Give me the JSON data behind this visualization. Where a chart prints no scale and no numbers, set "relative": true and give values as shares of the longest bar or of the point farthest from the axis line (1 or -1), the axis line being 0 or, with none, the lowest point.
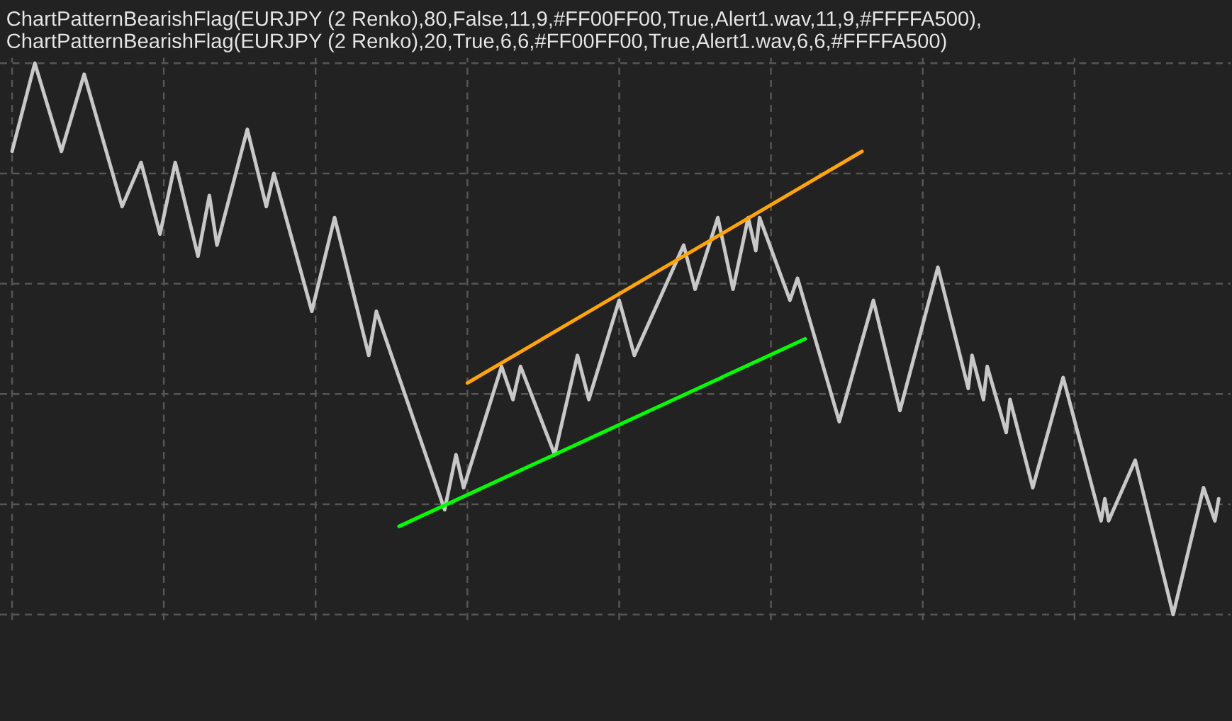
{
  "chart_data": {
    "type": "line",
    "relative": true,
    "title": "ChartPatternBearishFlag(EURJPY (2 Renko),80,False,11,9,#FF00FF00,True,Alert1.wav,11,9,#FFFFA500), ChartPatternBearishFlag(EURJPY (2 Renko),20,True,6,6,#FF00FF00,True,Alert1.wav,6,6,#FFFFA500)",
    "grid": true,
    "categories": [
      null,
      null,
      null,
      null,
      null,
      null,
      null,
      null,
      null,
      null,
      null,
      null,
      null,
      null,
      null,
      null,
      null,
      null,
      null,
      null,
      null,
      null,
      null,
      null,
      null,
      null,
      null,
      null,
      null,
      null,
      null,
      null,
      null,
      null,
      null,
      null,
      null,
      null,
      null,
      null,
      null,
      null,
      null,
      null,
      null,
      null,
      null,
      null,
      null,
      null,
      null,
      null,
      null,
      null,
      null,
      null,
      null,
      null,
      null,
      null,
      null,
      null,
      null,
      null,
      null,
      null,
      null,
      null,
      null,
      null,
      null,
      null,
      null,
      null,
      null,
      null,
      null,
      null,
      null,
      null,
      null,
      null,
      null,
      null,
      null,
      null,
      null,
      null,
      null,
      null,
      null,
      null,
      null,
      null,
      null,
      null,
      null,
      null,
      null,
      null,
      null,
      null,
      null,
      null,
      null,
      null,
      null,
      null,
      null,
      null,
      null,
      null,
      null,
      null,
      null,
      null,
      null,
      null,
      null,
      null,
      null,
      null,
      null,
      null,
      null,
      null,
      null,
      null,
      null,
      null,
      null,
      null,
      null,
      null,
      null,
      null,
      null,
      null,
      null,
      null,
      null,
      null,
      null,
      null,
      null,
      null,
      null,
      null,
      null,
      null,
      null,
      null,
      null,
      null,
      null,
      null,
      null,
      null,
      null,
      null,
      null,
      null,
      null,
      null,
      null,
      null,
      null,
      null,
      null,
      null,
      null,
      null,
      null,
      null,
      null,
      null,
      null,
      null,
      null,
      null,
      null,
      null,
      null,
      null,
      null,
      null,
      null,
      null,
      null,
      null,
      null,
      null,
      null,
      null,
      null,
      null,
      null,
      null,
      null,
      null,
      null,
      null,
      null,
      null,
      null,
      null,
      null,
      null,
      null,
      null,
      null,
      null,
      null,
      null,
      null,
      null,
      null,
      null,
      null,
      null,
      null,
      null,
      null,
      null,
      null,
      null,
      null,
      null,
      null,
      null,
      null,
      null,
      null,
      null,
      null,
      null,
      null,
      null,
      null,
      null,
      null,
      null,
      null,
      null,
      null,
      null,
      null,
      null,
      null,
      null,
      null,
      null,
      null,
      null,
      null,
      null,
      null,
      null,
      null,
      null,
      null,
      null,
      null,
      null,
      null,
      null,
      null,
      null,
      null,
      null,
      null,
      null,
      null,
      null,
      null,
      null,
      null,
      null,
      null,
      null,
      null,
      null,
      null,
      null,
      null,
      null,
      null,
      null,
      null,
      null,
      null,
      null,
      null,
      null,
      null,
      null,
      null,
      null,
      null,
      null,
      null,
      null,
      null,
      null,
      null,
      null,
      null,
      null,
      null,
      null,
      null,
      null,
      null,
      null,
      null,
      null,
      null,
      null,
      null
    ],
    "series": [
      {
        "color": "#c8c8c8",
        "values": [
          0.84,
          null,
          null,
          null,
          null,
          null,
          1.0,
          null,
          null,
          null,
          null,
          null,
          null,
          0.84,
          null,
          null,
          null,
          null,
          null,
          0.98,
          null,
          null,
          null,
          null,
          null,
          null,
          null,
          null,
          null,
          0.74,
          null,
          null,
          null,
          null,
          0.82,
          null,
          null,
          null,
          null,
          0.69,
          null,
          null,
          null,
          0.82,
          null,
          null,
          null,
          null,
          null,
          0.65,
          null,
          null,
          0.76,
          null,
          0.67,
          null,
          null,
          null,
          null,
          null,
          null,
          null,
          0.88,
          null,
          null,
          null,
          null,
          0.74,
          null,
          0.8,
          null,
          null,
          null,
          null,
          null,
          null,
          null,
          null,
          null,
          0.55,
          null,
          null,
          null,
          null,
          null,
          0.72,
          null,
          null,
          null,
          null,
          null,
          null,
          null,
          null,
          0.47,
          null,
          0.55,
          null,
          null,
          null,
          null,
          null,
          null,
          null,
          null,
          null,
          null,
          null,
          null,
          null,
          null,
          null,
          null,
          null,
          0.19,
          null,
          null,
          0.29,
          null,
          0.23,
          null,
          null,
          null,
          null,
          null,
          null,
          null,
          null,
          null,
          0.45,
          null,
          null,
          0.39,
          null,
          0.45,
          null,
          null,
          null,
          null,
          null,
          null,
          null,
          null,
          0.29,
          null,
          null,
          null,
          null,
          null,
          0.47,
          null,
          null,
          0.39,
          null,
          null,
          null,
          null,
          null,
          null,
          null,
          0.57,
          null,
          null,
          null,
          0.47,
          null,
          null,
          null,
          null,
          null,
          null,
          null,
          null,
          null,
          null,
          null,
          null,
          0.67,
          null,
          null,
          0.59,
          null,
          null,
          null,
          null,
          null,
          0.72,
          null,
          null,
          null,
          0.59,
          null,
          null,
          null,
          0.72,
          null,
          0.66,
          0.72,
          null,
          null,
          null,
          null,
          null,
          null,
          null,
          0.57,
          null,
          0.61,
          null,
          null,
          null,
          null,
          null,
          null,
          null,
          null,
          null,
          null,
          0.35,
          null,
          null,
          null,
          null,
          null,
          null,
          null,
          null,
          0.57,
          null,
          null,
          null,
          null,
          null,
          null,
          0.37,
          null,
          null,
          null,
          null,
          null,
          null,
          null,
          null,
          null,
          0.63,
          null,
          null,
          null,
          null,
          null,
          null,
          null,
          0.41,
          0.47,
          null,
          null,
          0.39,
          0.45,
          null,
          null,
          null,
          null,
          0.33,
          0.39,
          null,
          null,
          null,
          null,
          null,
          0.23,
          null,
          null,
          null,
          null,
          null,
          null,
          null,
          0.43,
          null,
          null,
          null,
          null,
          null,
          null,
          null,
          null,
          null,
          0.17,
          0.21,
          0.17,
          null,
          null,
          null,
          null,
          null,
          null,
          0.28,
          null,
          null,
          null,
          null,
          null,
          null,
          null,
          null,
          null,
          0.0,
          null,
          null,
          null,
          null,
          null,
          null,
          null,
          0.23,
          null,
          null,
          0.17,
          0.21
        ]
      },
      {
        "color": "#ffa500",
        "values": [
          null,
          null,
          null,
          null,
          null,
          null,
          null,
          null,
          null,
          null,
          null,
          null,
          null,
          null,
          null,
          null,
          null,
          null,
          null,
          null,
          null,
          null,
          null,
          null,
          null,
          null,
          null,
          null,
          null,
          null,
          null,
          null,
          null,
          null,
          null,
          null,
          null,
          null,
          null,
          null,
          null,
          null,
          null,
          null,
          null,
          null,
          null,
          null,
          null,
          null,
          null,
          null,
          null,
          null,
          null,
          null,
          null,
          null,
          null,
          null,
          null,
          null,
          null,
          null,
          null,
          null,
          null,
          null,
          null,
          null,
          null,
          null,
          null,
          null,
          null,
          null,
          null,
          null,
          null,
          null,
          null,
          null,
          null,
          null,
          null,
          null,
          null,
          null,
          null,
          null,
          null,
          null,
          null,
          null,
          null,
          null,
          null,
          null,
          null,
          null,
          null,
          null,
          null,
          null,
          null,
          null,
          null,
          null,
          null,
          null,
          null,
          null,
          null,
          null,
          null,
          null,
          null,
          null,
          null,
          null,
          0.42,
          null,
          null,
          null,
          null,
          null,
          null,
          null,
          null,
          null,
          null,
          null,
          null,
          null,
          null,
          null,
          null,
          null,
          null,
          null,
          null,
          null,
          null,
          null,
          null,
          null,
          null,
          null,
          null,
          null,
          null,
          null,
          null,
          null,
          null,
          null,
          null,
          null,
          null,
          null,
          null,
          null,
          null,
          null,
          null,
          null,
          null,
          null,
          null,
          null,
          null,
          null,
          null,
          null,
          null,
          null,
          null,
          null,
          null,
          null,
          null,
          null,
          null,
          null,
          null,
          null,
          null,
          null,
          null,
          null,
          null,
          null,
          null,
          null,
          null,
          null,
          null,
          null,
          null,
          null,
          null,
          null,
          null,
          null,
          null,
          null,
          null,
          null,
          null,
          null,
          null,
          null,
          null,
          null,
          null,
          null,
          null,
          null,
          null,
          null,
          null,
          null,
          null,
          null,
          0.84,
          null,
          null,
          null,
          null,
          null,
          null,
          null,
          null,
          null,
          null,
          null,
          null,
          null,
          null,
          null,
          null,
          null,
          null,
          null,
          null,
          null,
          null,
          null,
          null,
          null,
          null,
          null,
          null,
          null,
          null,
          null,
          null,
          null,
          null,
          null,
          null,
          null,
          null,
          null,
          null,
          null,
          null,
          null,
          null,
          null,
          null,
          null,
          null,
          null,
          null,
          null,
          null,
          null,
          null,
          null,
          null,
          null,
          null,
          null,
          null,
          null,
          null,
          null,
          null,
          null,
          null,
          null,
          null,
          null,
          null,
          null,
          null,
          null,
          null,
          null,
          null,
          null,
          null,
          null,
          null,
          null,
          null,
          null,
          null,
          null,
          null,
          null,
          null,
          null,
          null,
          null,
          null,
          null,
          null
        ]
      },
      {
        "color": "#00ff00",
        "values": [
          null,
          null,
          null,
          null,
          null,
          null,
          null,
          null,
          null,
          null,
          null,
          null,
          null,
          null,
          null,
          null,
          null,
          null,
          null,
          null,
          null,
          null,
          null,
          null,
          null,
          null,
          null,
          null,
          null,
          null,
          null,
          null,
          null,
          null,
          null,
          null,
          null,
          null,
          null,
          null,
          null,
          null,
          null,
          null,
          null,
          null,
          null,
          null,
          null,
          null,
          null,
          null,
          null,
          null,
          null,
          null,
          null,
          null,
          null,
          null,
          null,
          null,
          null,
          null,
          null,
          null,
          null,
          null,
          null,
          null,
          null,
          null,
          null,
          null,
          null,
          null,
          null,
          null,
          null,
          null,
          null,
          null,
          null,
          null,
          null,
          null,
          null,
          null,
          null,
          null,
          null,
          null,
          null,
          null,
          null,
          null,
          null,
          null,
          null,
          null,
          null,
          null,
          0.16,
          null,
          null,
          null,
          null,
          null,
          null,
          null,
          null,
          null,
          null,
          null,
          null,
          null,
          null,
          null,
          null,
          null,
          null,
          null,
          null,
          null,
          null,
          null,
          null,
          null,
          null,
          null,
          null,
          null,
          null,
          null,
          null,
          null,
          null,
          null,
          null,
          null,
          null,
          null,
          null,
          null,
          null,
          null,
          null,
          null,
          null,
          null,
          null,
          null,
          null,
          null,
          null,
          null,
          null,
          null,
          null,
          null,
          null,
          null,
          null,
          null,
          null,
          null,
          null,
          null,
          null,
          null,
          null,
          null,
          null,
          null,
          null,
          null,
          null,
          null,
          null,
          null,
          null,
          null,
          null,
          null,
          null,
          null,
          null,
          null,
          null,
          null,
          null,
          null,
          null,
          null,
          null,
          null,
          null,
          null,
          null,
          null,
          null,
          null,
          null,
          null,
          null,
          null,
          null,
          null,
          null,
          0.5,
          null,
          null,
          null,
          null,
          null,
          null,
          null,
          null,
          null,
          null,
          null,
          null,
          null,
          null,
          null,
          null,
          null,
          null,
          null,
          null,
          null,
          null,
          null,
          null,
          null,
          null,
          null,
          null,
          null,
          null,
          null,
          null,
          null,
          null,
          null,
          null,
          null,
          null,
          null,
          null,
          null,
          null,
          null,
          null,
          null,
          null,
          null,
          null,
          null,
          null,
          null,
          null,
          null,
          null,
          null,
          null,
          null,
          null,
          null,
          null,
          null,
          null,
          null,
          null,
          null,
          null,
          null,
          null,
          null,
          null,
          null,
          null,
          null,
          null,
          null,
          null,
          null,
          null,
          null,
          null,
          null,
          null,
          null,
          null,
          null,
          null,
          null,
          null,
          null,
          null,
          null,
          null,
          null,
          null,
          null,
          null,
          null,
          null,
          null,
          null,
          null,
          null,
          null,
          null,
          null,
          null,
          null,
          null,
          null
        ]
      }
    ]
  }
}
